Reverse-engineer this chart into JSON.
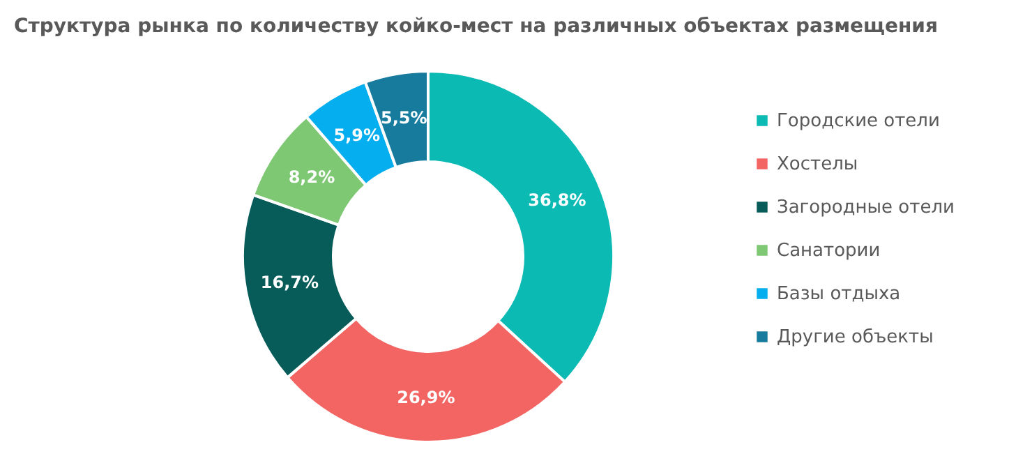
{
  "chart_data": {
    "type": "donut",
    "title": "Структура рынка по количеству койко-мест на различных объектах размещения",
    "categories": [
      "Городские отели",
      "Хостелы",
      "Загородные отели",
      "Санатории",
      "Базы отдыха",
      "Другие объекты"
    ],
    "values": [
      36.8,
      26.9,
      16.7,
      8.2,
      5.9,
      5.5
    ],
    "colors": [
      "#0cbab4",
      "#f26563",
      "#075c59",
      "#7ec874",
      "#05aeee",
      "#177b9e"
    ],
    "value_labels": [
      "36,8%",
      "26,9%",
      "16,7%",
      "8,2%",
      "5,9%",
      "5,5%"
    ],
    "legend": "right"
  }
}
